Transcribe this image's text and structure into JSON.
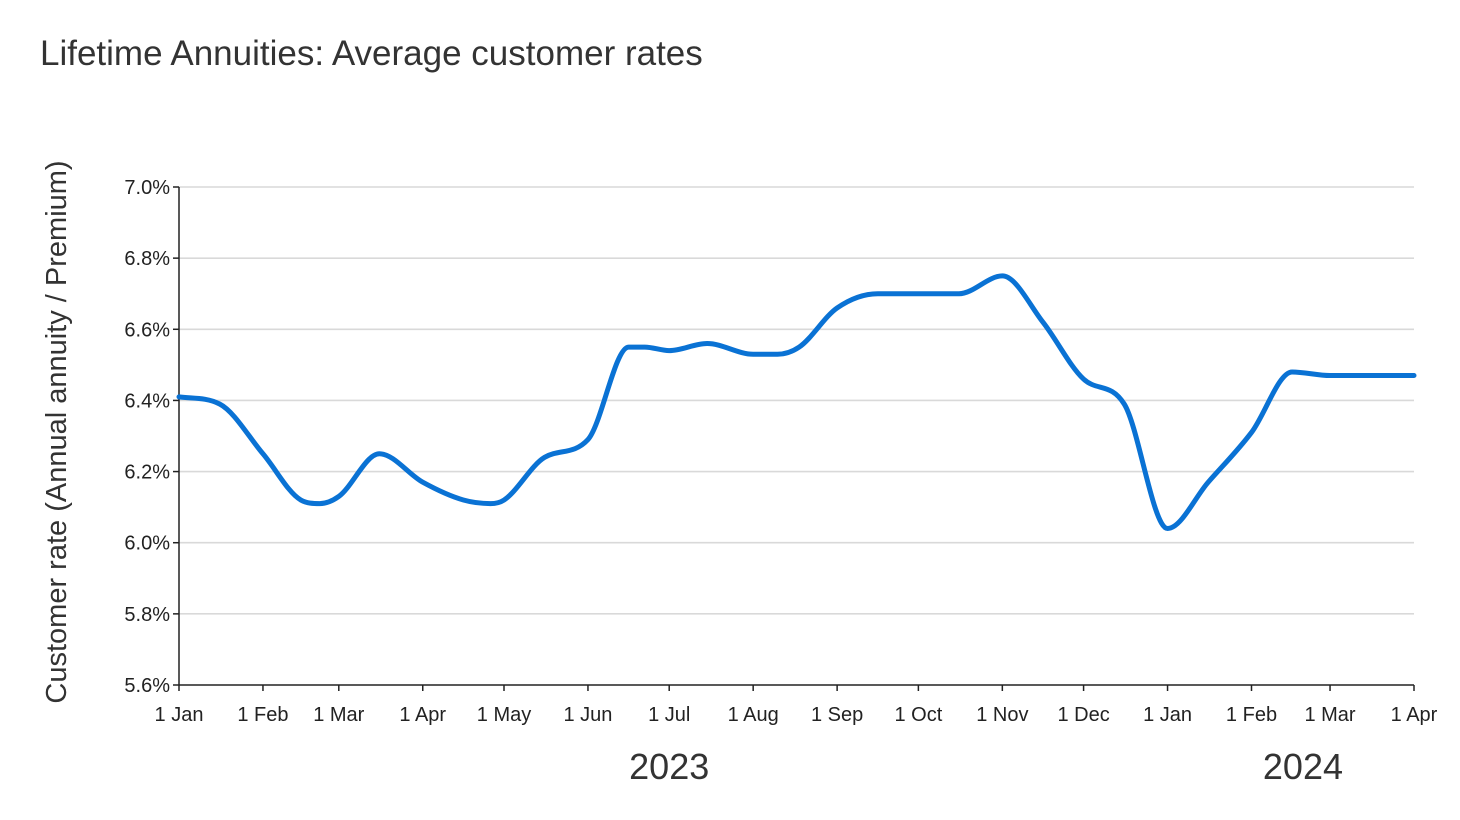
{
  "chart_data": {
    "type": "line",
    "title": "Lifetime Annuities: Average customer rates",
    "ylabel": "Customer rate (Annual annuity / Premium)",
    "xlabel": "",
    "ylim": [
      5.6,
      7.0
    ],
    "y_ticks": [
      "5.6%",
      "5.8%",
      "6.0%",
      "6.2%",
      "6.4%",
      "6.6%",
      "6.8%",
      "7.0%"
    ],
    "y_tick_values": [
      5.6,
      5.8,
      6.0,
      6.2,
      6.4,
      6.6,
      6.8,
      7.0
    ],
    "grid": true,
    "x_ticks": [
      "1 Jan",
      "1 Feb",
      "1 Mar",
      "1 Apr",
      "1 May",
      "1 Jun",
      "1 Jul",
      "1 Aug",
      "1 Sep",
      "1 Oct",
      "1 Nov",
      "1 Dec",
      "1 Jan",
      "1 Feb",
      "1 Mar",
      "1 Apr"
    ],
    "x_tick_dates": [
      "2023-01-01",
      "2023-02-01",
      "2023-03-01",
      "2023-04-01",
      "2023-05-01",
      "2023-06-01",
      "2023-07-01",
      "2023-08-01",
      "2023-09-01",
      "2023-10-01",
      "2023-11-01",
      "2023-12-01",
      "2024-01-01",
      "2024-02-01",
      "2024-03-01",
      "2024-04-01"
    ],
    "year_labels": [
      {
        "text": "2023",
        "date": "2023-07-01"
      },
      {
        "text": "2024",
        "date": "2024-02-20"
      }
    ],
    "xlim": [
      "2023-01-01",
      "2024-04-01"
    ],
    "colors": {
      "line": "#0a72d4",
      "grid": "#d9d9d9",
      "axis": "#222222"
    },
    "series": [
      {
        "x": [
          "2023-01-01",
          "2023-01-16",
          "2023-02-01",
          "2023-02-15",
          "2023-02-22",
          "2023-03-01",
          "2023-03-16",
          "2023-04-01",
          "2023-04-16",
          "2023-04-26",
          "2023-05-01",
          "2023-05-16",
          "2023-06-01",
          "2023-06-16",
          "2023-06-22",
          "2023-07-01",
          "2023-07-15",
          "2023-08-01",
          "2023-08-10",
          "2023-08-18",
          "2023-09-01",
          "2023-09-16",
          "2023-10-01",
          "2023-10-16",
          "2023-11-01",
          "2023-11-16",
          "2023-12-01",
          "2023-12-16",
          "2024-01-01",
          "2024-01-16",
          "2024-02-01",
          "2024-02-16",
          "2024-03-01",
          "2024-03-16",
          "2024-04-01"
        ],
        "values": [
          6.41,
          6.39,
          6.25,
          6.12,
          6.11,
          6.13,
          6.25,
          6.17,
          6.12,
          6.11,
          6.12,
          6.24,
          6.29,
          6.55,
          6.55,
          6.54,
          6.56,
          6.53,
          6.53,
          6.55,
          6.66,
          6.7,
          6.7,
          6.7,
          6.75,
          6.62,
          6.46,
          6.39,
          6.04,
          6.17,
          6.31,
          6.48,
          6.47,
          6.47,
          6.47
        ]
      }
    ]
  }
}
